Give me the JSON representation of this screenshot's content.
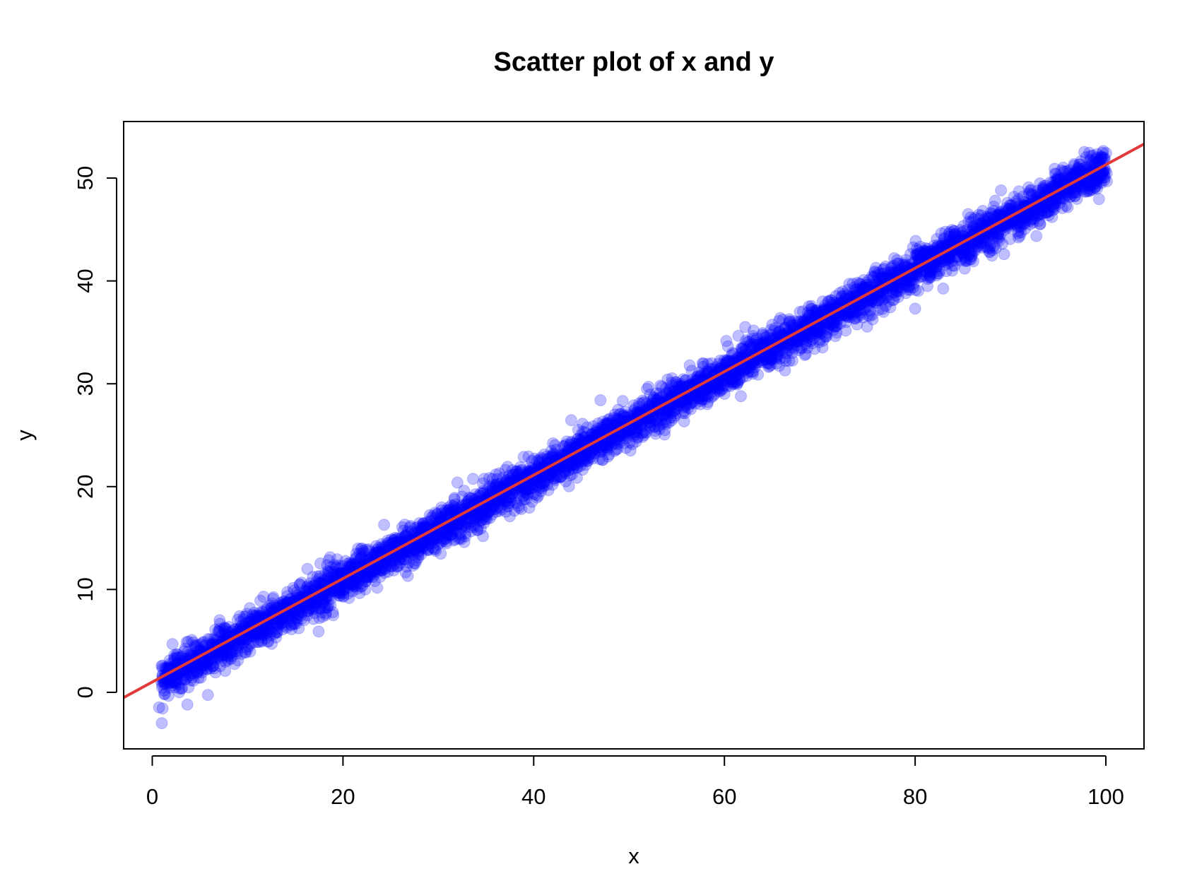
{
  "chart_data": {
    "type": "scatter",
    "title": "Scatter plot of x and y",
    "xlabel": "x",
    "ylabel": "y",
    "xlim": [
      -3,
      104
    ],
    "ylim": [
      -5.5,
      55.5
    ],
    "xticks": [
      0,
      20,
      40,
      60,
      80,
      100
    ],
    "yticks": [
      0,
      10,
      20,
      30,
      40,
      50
    ],
    "grid": false,
    "legend": "none",
    "series": [
      {
        "x_range": [
          1,
          100
        ],
        "approx_points": 5000,
        "relation": "y ≈ 0.5·x + 0.8 with noise (sd ≈ 1)",
        "color": "#0000FF",
        "opacity": 0.25,
        "marker": "circle",
        "outliers": [
          {
            "x": 1,
            "y": -3
          },
          {
            "x": 47,
            "y": 28.4
          },
          {
            "x": 80,
            "y": 37.3
          },
          {
            "x": 32,
            "y": 20.4
          },
          {
            "x": 89,
            "y": 48.8
          }
        ]
      }
    ],
    "fit_line": {
      "slope": 0.503,
      "intercept": 1.0,
      "color": "#E23A3A"
    }
  }
}
